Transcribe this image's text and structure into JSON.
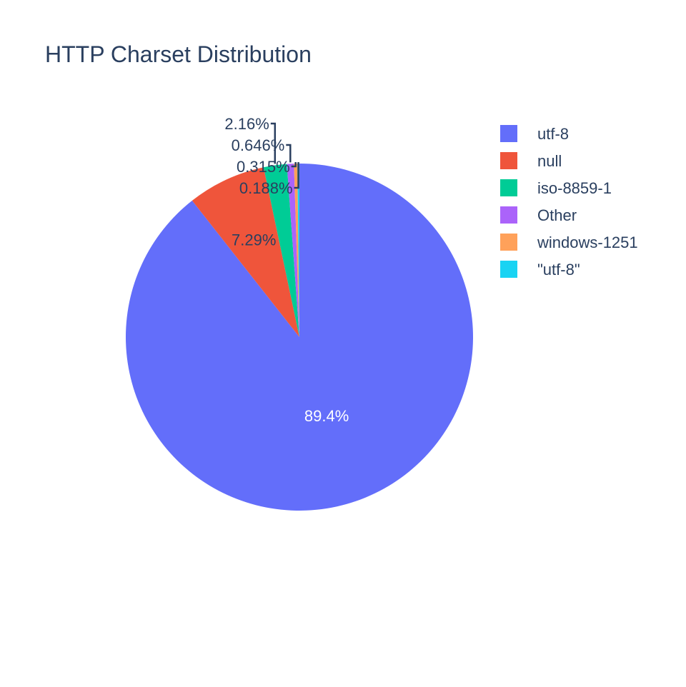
{
  "chart_data": {
    "type": "pie",
    "title": "HTTP Charset Distribution",
    "slices": [
      {
        "label": "utf-8",
        "percent": 89.4,
        "percent_text": "89.4%",
        "color": "#636efa",
        "text_color": "#ffffff"
      },
      {
        "label": "null",
        "percent": 7.29,
        "percent_text": "7.29%",
        "color": "#ef553b",
        "text_color": "#2a3f5f"
      },
      {
        "label": "iso-8859-1",
        "percent": 2.16,
        "percent_text": "2.16%",
        "color": "#00cc96",
        "text_color": "#2a3f5f"
      },
      {
        "label": "Other",
        "percent": 0.646,
        "percent_text": "0.646%",
        "color": "#ab63fa",
        "text_color": "#2a3f5f"
      },
      {
        "label": "windows-1251",
        "percent": 0.315,
        "percent_text": "0.315%",
        "color": "#ffa15a",
        "text_color": "#2a3f5f"
      },
      {
        "label": "\"utf-8\"",
        "percent": 0.188,
        "percent_text": "0.188%",
        "color": "#19d3f3",
        "text_color": "#2a3f5f"
      }
    ],
    "direction": "clockwise",
    "start": "top",
    "legend_position": "top-right",
    "text_color": "#2a3f5f"
  }
}
